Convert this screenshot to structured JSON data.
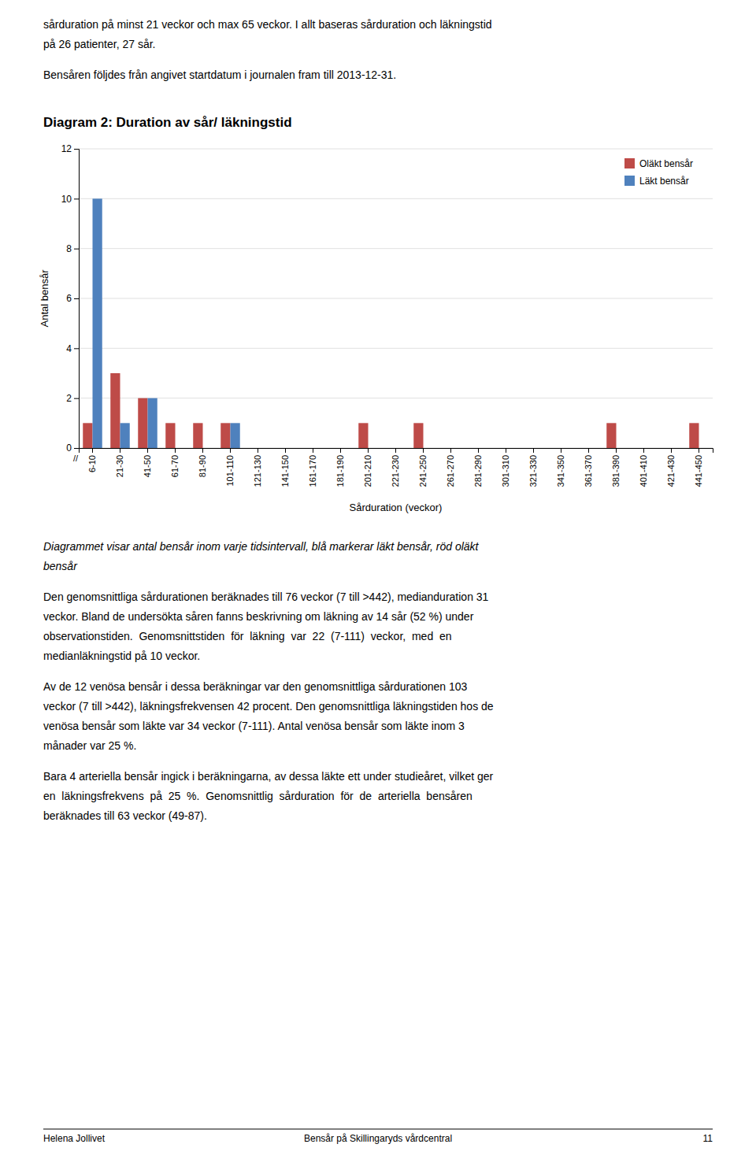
{
  "text_above": [
    [
      "sårduration på minst 21 veckor och max 65 veckor. I allt baseras sårduration och läkningstid",
      "på 26 patienter, 27 sår."
    ],
    [
      "Bensåren följdes från angivet startdatum i journalen fram till 2013-12-31."
    ]
  ],
  "chart_data": {
    "type": "bar",
    "title": "Diagram 2: Duration av sår/ läkningstid",
    "xlabel": "Sårduration (veckor)",
    "ylabel": "Antal bensår",
    "categories": [
      "6-10",
      "21-30",
      "41-50",
      "61-70",
      "81-90",
      "101-110",
      "121-130",
      "141-150",
      "161-170",
      "181-190",
      "201-210",
      "221-230",
      "241-250",
      "261-270",
      "281-290",
      "301-310",
      "321-330",
      "341-350",
      "361-370",
      "381-390",
      "401-410",
      "421-430",
      "441-450"
    ],
    "series": [
      {
        "name": "Oläkt bensår",
        "color": "#BE4B48",
        "values": [
          1,
          3,
          2,
          1,
          1,
          1,
          0,
          0,
          0,
          0,
          1,
          0,
          1,
          0,
          0,
          0,
          0,
          0,
          0,
          1,
          0,
          0,
          1
        ]
      },
      {
        "name": "Läkt bensår",
        "color": "#4F81BD",
        "values": [
          10,
          1,
          2,
          0,
          0,
          1,
          0,
          0,
          0,
          0,
          0,
          0,
          0,
          0,
          0,
          0,
          0,
          0,
          0,
          0,
          0,
          0,
          0
        ]
      }
    ],
    "ylim": [
      0,
      12
    ],
    "yticks": [
      0,
      2,
      4,
      6,
      8,
      10,
      12
    ],
    "grid": true,
    "legend": "upper right",
    "annotations": [
      "//"
    ]
  },
  "caption": [
    "Diagrammet visar antal bensår inom varje tidsintervall, blå markerar läkt bensår, röd oläkt",
    "bensår"
  ],
  "text_below": [
    [
      "Den genomsnittliga sårdurationen beräknades till 76 veckor (7 till >442), medianduration 31",
      "veckor. Bland de undersökta såren fanns beskrivning om läkning av 14 sår (52 %) under",
      "observationstiden.  Genomsnittstiden  för  läkning  var  22  (7-111)  veckor,  med  en",
      "medianläkningstid på 10 veckor."
    ],
    [
      "Av de 12 venösa bensår i dessa beräkningar var den genomsnittliga sårdurationen 103",
      "veckor (7 till >442), läkningsfrekvensen 42 procent. Den genomsnittliga läkningstiden hos de",
      "venösa bensår som läkte var 34 veckor (7-111). Antal venösa bensår som läkte inom 3",
      "månader var 25 %."
    ],
    [
      "Bara 4 arteriella bensår ingick i beräkningarna, av dessa läkte ett under studieåret, vilket ger",
      "en  läkningsfrekvens  på  25  %.  Genomsnittlig  sårduration  för  de  arteriella  bensåren",
      "beräknades till 63 veckor (49-87)."
    ]
  ],
  "footer": {
    "left": "Helena Jollivet",
    "center": "Bensår på Skillingaryds vårdcentral",
    "right": "11"
  }
}
